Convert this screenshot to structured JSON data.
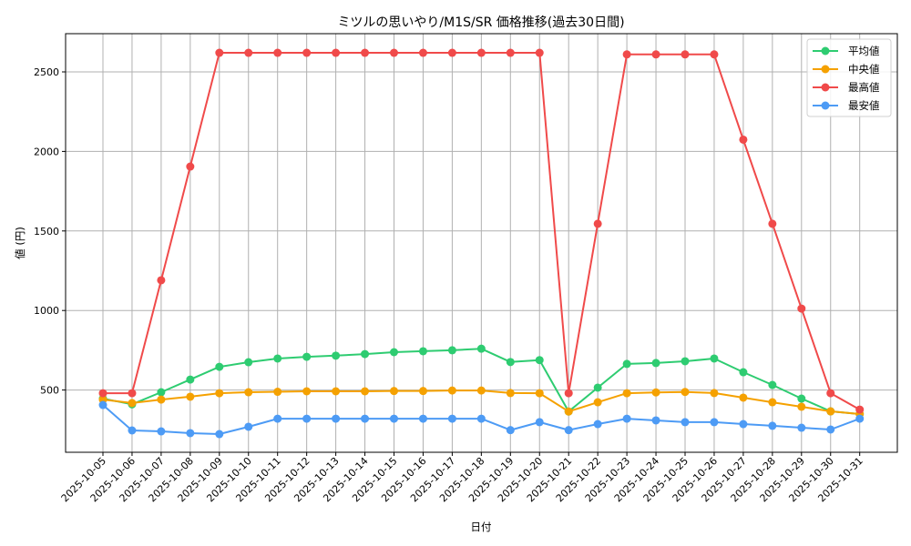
{
  "chart_data": {
    "type": "line",
    "title": "ミツルの思いやり/M1S/SR 価格推移(過去30日間)",
    "xlabel": "日付",
    "ylabel": "値 (円)",
    "ylim": [
      110,
      2740
    ],
    "yticks": [
      500,
      1000,
      1500,
      2000,
      2500
    ],
    "grid": true,
    "legend_position": "upper right",
    "categories": [
      "2025-10-05",
      "2025-10-06",
      "2025-10-07",
      "2025-10-08",
      "2025-10-09",
      "2025-10-10",
      "2025-10-11",
      "2025-10-12",
      "2025-10-13",
      "2025-10-14",
      "2025-10-15",
      "2025-10-16",
      "2025-10-17",
      "2025-10-18",
      "2025-10-19",
      "2025-10-20",
      "2025-10-21",
      "2025-10-22",
      "2025-10-23",
      "2025-10-24",
      "2025-10-25",
      "2025-10-26",
      "2025-10-27",
      "2025-10-28",
      "2025-10-29",
      "2025-10-30",
      "2025-10-31"
    ],
    "series": [
      {
        "name": "平均値",
        "color": "#2ecc71",
        "values": [
          446,
          410,
          486,
          566,
          646,
          675,
          698,
          709,
          716,
          726,
          738,
          744,
          750,
          760,
          676,
          688,
          365,
          515,
          664,
          670,
          681,
          698,
          612,
          532,
          446,
          366,
          349
        ]
      },
      {
        "name": "中央値",
        "color": "#f5a100",
        "values": [
          440,
          418,
          440,
          458,
          480,
          486,
          489,
          492,
          492,
          492,
          494,
          494,
          497,
          497,
          481,
          480,
          365,
          423,
          480,
          485,
          488,
          481,
          452,
          423,
          395,
          366,
          349
        ]
      },
      {
        "name": "最高値",
        "color": "#f04a4a",
        "values": [
          480,
          480,
          1190,
          1905,
          2620,
          2620,
          2620,
          2620,
          2620,
          2620,
          2620,
          2620,
          2620,
          2620,
          2620,
          2620,
          480,
          1545,
          2610,
          2610,
          2610,
          2610,
          2074,
          1545,
          1012,
          480,
          377
        ]
      },
      {
        "name": "最安値",
        "color": "#4d9bf5",
        "values": [
          406,
          246,
          240,
          229,
          223,
          269,
          320,
          320,
          320,
          320,
          320,
          320,
          320,
          320,
          248,
          298,
          248,
          286,
          320,
          309,
          298,
          298,
          286,
          275,
          263,
          252,
          320
        ]
      }
    ]
  }
}
